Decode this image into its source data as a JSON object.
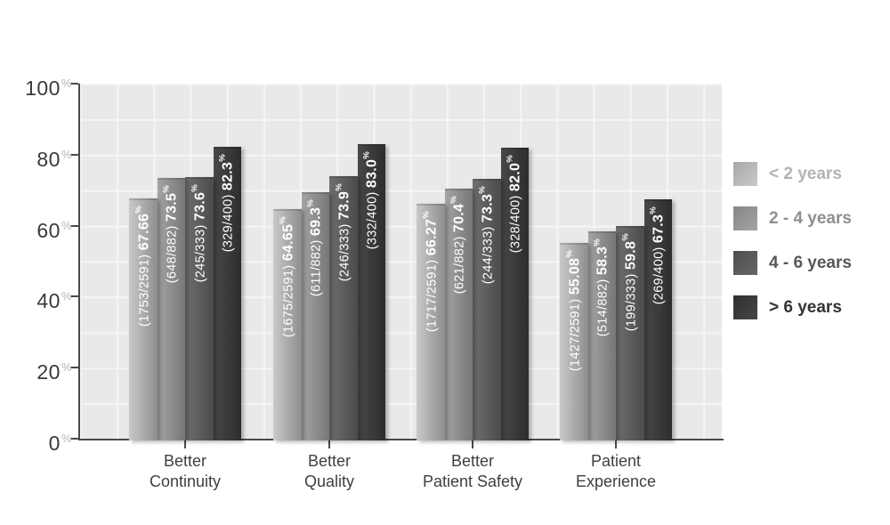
{
  "chart_data": {
    "type": "bar",
    "title": "",
    "grid": true,
    "legend_position": "right",
    "categories": [
      {
        "line1": "Better",
        "line2": "Continuity"
      },
      {
        "line1": "Better",
        "line2": "Quality"
      },
      {
        "line1": "Better",
        "line2": "Patient Safety"
      },
      {
        "line1": "Patient",
        "line2": "Experience"
      }
    ],
    "y_axis": {
      "ticks": [
        0,
        20,
        40,
        60,
        80,
        100
      ],
      "min": 0,
      "max": 100,
      "unit": "%"
    },
    "series": [
      {
        "name": "< 2 years",
        "values": [
          67.66,
          64.65,
          66.27,
          55.08
        ],
        "value_labels": [
          "67.66",
          "64.65",
          "66.27",
          "55.08"
        ],
        "fractions": [
          "1753/2591",
          "1675/2591",
          "1717/2591",
          "1427/2591"
        ],
        "bar_gradient": [
          "#c9c9c9",
          "#8e8e8e"
        ],
        "legend_gradient": [
          "#a8a8a8",
          "#c9c9c9"
        ],
        "legend_text_color": "#b3b3b3"
      },
      {
        "name": "2 - 4 years",
        "values": [
          73.5,
          69.3,
          70.4,
          58.3
        ],
        "value_labels": [
          "73.5",
          "69.3",
          "70.4",
          "58.3"
        ],
        "fractions": [
          "648/882",
          "611/882",
          "621/882",
          "514/882"
        ],
        "bar_gradient": [
          "#a4a4a4",
          "#777777"
        ],
        "legend_gradient": [
          "#868686",
          "#a4a4a4"
        ],
        "legend_text_color": "#8f8f8f"
      },
      {
        "name": "4 - 6 years",
        "values": [
          73.6,
          73.9,
          73.3,
          59.8
        ],
        "value_labels": [
          "73.6",
          "73.9",
          "73.3",
          "59.8"
        ],
        "fractions": [
          "245/333",
          "246/333",
          "244/333",
          "199/333"
        ],
        "bar_gradient": [
          "#6f6f6f",
          "#4b4b4b"
        ],
        "legend_gradient": [
          "#4e4e4e",
          "#666666"
        ],
        "legend_text_color": "#575757"
      },
      {
        "name": "> 6 years",
        "values": [
          82.3,
          83.0,
          82.0,
          67.3
        ],
        "value_labels": [
          "82.3",
          "83.0",
          "82.0",
          "67.3"
        ],
        "fractions": [
          "329/400",
          "332/400",
          "328/400",
          "269/400"
        ],
        "bar_gradient": [
          "#484848",
          "#2d2d2d"
        ],
        "legend_gradient": [
          "#2f2f2f",
          "#474747"
        ],
        "legend_text_color": "#333333"
      }
    ],
    "colors": {
      "plot_background": "#e9e9e9",
      "gridline": "#f5f5f5",
      "axis": "#4a4a4a",
      "tick_label": "#3a3a3a",
      "tick_percent": "#b5b5b5",
      "bar_value_text": "#ffffff"
    }
  }
}
